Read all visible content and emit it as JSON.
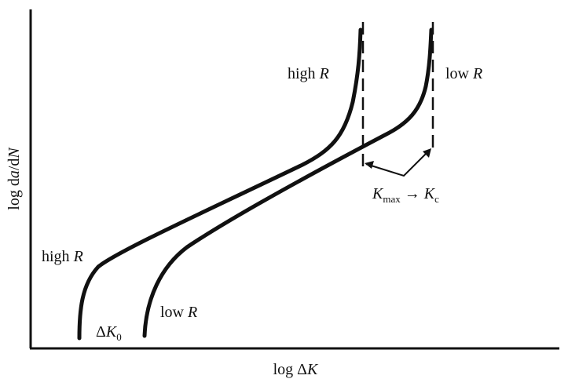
{
  "axes": {
    "xlabel": {
      "prefix": "log Δ",
      "var": "K"
    },
    "ylabel": {
      "prefix": "log d",
      "a": "a",
      "slash": "/d",
      "n": "N"
    }
  },
  "curves": [
    {
      "id": "high-r",
      "label_prefix": "high ",
      "label_var": "R"
    },
    {
      "id": "low-r",
      "label_prefix": "low ",
      "label_var": "R"
    }
  ],
  "annotations": {
    "threshold": {
      "delta": "Δ",
      "var": "K",
      "sub": "0"
    },
    "fracture": {
      "kvar": "K",
      "ksub": "max",
      "arrow": " → ",
      "kcvar": "K",
      "kcsub": "c"
    }
  },
  "colors": {
    "line": "#111111",
    "background": "#ffffff"
  }
}
